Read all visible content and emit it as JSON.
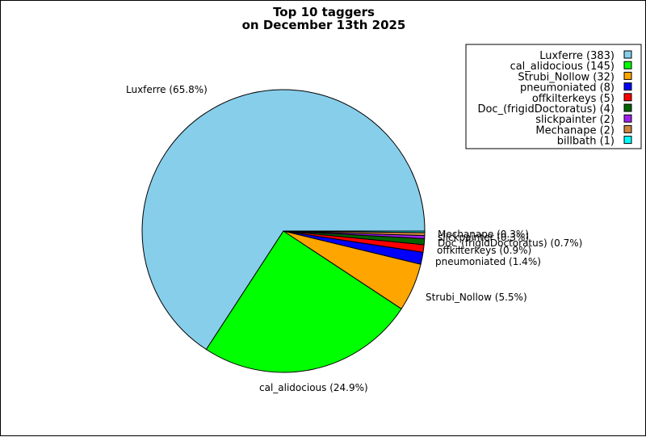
{
  "chart_data": {
    "type": "pie",
    "title": [
      "Top 10 taggers",
      "on December 13th 2025"
    ],
    "legend_position": "top-right",
    "slices": [
      {
        "name": "Luxferre",
        "count": 383,
        "percent_label": "65.8%",
        "color": "#87ceeb",
        "legend_text": "Luxferre (383)",
        "label": "Luxferre (65.8%)"
      },
      {
        "name": "cal_alidocious",
        "count": 145,
        "percent_label": "24.9%",
        "color": "#00ff00",
        "legend_text": "cal_alidocious (145)",
        "label": "cal_alidocious (24.9%)"
      },
      {
        "name": "Strubi_Nollow",
        "count": 32,
        "percent_label": "5.5%",
        "color": "#ffa500",
        "legend_text": "Strubi_Nollow (32)",
        "label": "Strubi_Nollow (5.5%)"
      },
      {
        "name": "pneumoniated",
        "count": 8,
        "percent_label": "1.4%",
        "color": "#0000ff",
        "legend_text": "pneumoniated (8)",
        "label": "pneumoniated (1.4%)"
      },
      {
        "name": "offkilterkeys",
        "count": 5,
        "percent_label": "0.9%",
        "color": "#ff0000",
        "legend_text": "offkilterkeys (5)",
        "label": "offkilterkeys (0.9%)"
      },
      {
        "name": "Doc_(frigidDoctoratus)",
        "count": 4,
        "percent_label": "0.7%",
        "color": "#006400",
        "legend_text": "Doc_(frigidDoctoratus) (4)",
        "label": "Doc_(frigidDoctoratus) (0.7%)"
      },
      {
        "name": "slickpainter",
        "count": 2,
        "percent_label": "0.3%",
        "color": "#a020f0",
        "legend_text": "slickpainter (2)",
        "label": "slickpainter (0.3%)"
      },
      {
        "name": "Mechanape",
        "count": 2,
        "percent_label": "0.3%",
        "color": "#cd853f",
        "legend_text": "Mechanape (2)",
        "label": "Mechanape (0.3%)"
      },
      {
        "name": "billbath",
        "count": 1,
        "percent_label": "0.2%",
        "color": "#00ffff",
        "legend_text": "billbath (1)",
        "label": ""
      }
    ]
  }
}
